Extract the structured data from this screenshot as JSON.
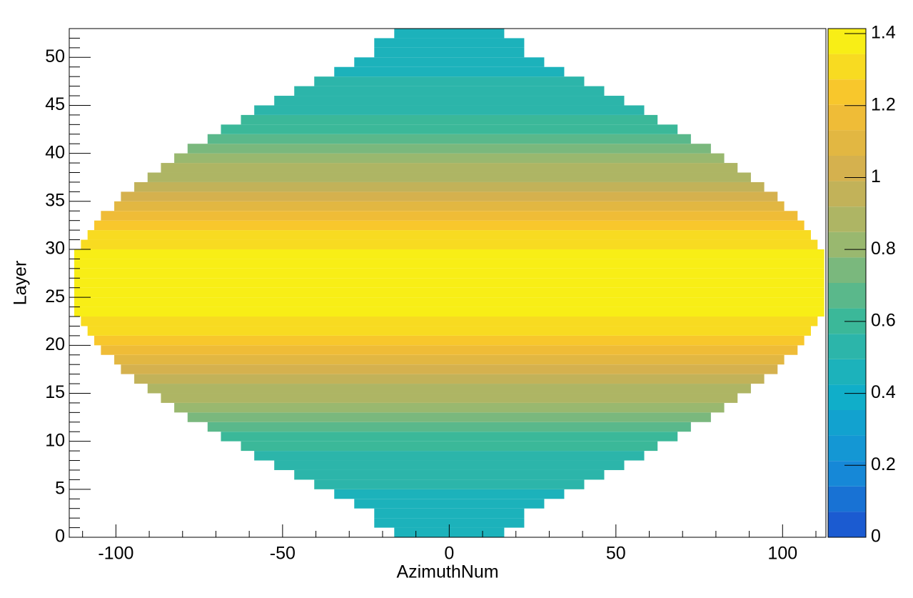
{
  "chart_data": {
    "type": "heatmap",
    "x_label": "AzimuthNum",
    "y_label": "Layer",
    "layers": [
      0,
      1,
      2,
      3,
      4,
      5,
      6,
      7,
      8,
      9,
      10,
      11,
      12,
      13,
      14,
      15,
      16,
      17,
      18,
      19,
      20,
      21,
      22,
      23,
      24,
      25,
      26,
      27,
      28,
      29,
      30,
      31,
      32,
      33,
      34,
      35,
      36,
      37,
      38,
      39,
      40,
      41,
      42,
      43,
      44,
      45,
      46,
      47,
      48,
      49,
      50,
      51,
      52
    ],
    "half_widths": [
      16,
      22,
      22,
      28,
      34,
      40,
      46,
      52,
      58,
      62,
      68,
      72,
      78,
      82,
      86,
      90,
      94,
      98,
      100,
      104,
      106,
      108,
      110,
      112,
      112,
      112,
      112,
      112,
      112,
      112,
      110,
      108,
      106,
      104,
      100,
      98,
      94,
      90,
      86,
      82,
      78,
      72,
      68,
      62,
      58,
      52,
      46,
      40,
      34,
      28,
      22,
      22,
      16
    ],
    "values": [
      0.45,
      0.45,
      0.45,
      0.45,
      0.48,
      0.5,
      0.5,
      0.52,
      0.55,
      0.58,
      0.62,
      0.66,
      0.72,
      0.78,
      0.85,
      0.9,
      0.98,
      1.05,
      1.12,
      1.18,
      1.22,
      1.28,
      1.32,
      1.38,
      1.4,
      1.4,
      1.4,
      1.4,
      1.4,
      1.38,
      1.32,
      1.28,
      1.22,
      1.18,
      1.12,
      1.05,
      0.98,
      0.9,
      0.85,
      0.78,
      0.72,
      0.66,
      0.62,
      0.58,
      0.55,
      0.52,
      0.5,
      0.5,
      0.48,
      0.45,
      0.45,
      0.45,
      0.45
    ],
    "xlim": [
      -114,
      113
    ],
    "ylim": [
      0,
      53
    ],
    "zlim": [
      0,
      1.414
    ],
    "xticks": [
      -100,
      -50,
      0,
      50,
      100
    ],
    "yticks": [
      0,
      5,
      10,
      15,
      20,
      25,
      30,
      35,
      40,
      45,
      50
    ],
    "zticks": [
      0,
      0.2,
      0.4,
      0.6,
      0.8,
      1,
      1.2,
      1.4
    ],
    "colorscale": [
      "#1c50d0",
      "#1590d8",
      "#10b0c8",
      "#3cb898",
      "#98b870",
      "#d2b050",
      "#f8c030",
      "#f8f810"
    ],
    "color_bands": 20
  }
}
